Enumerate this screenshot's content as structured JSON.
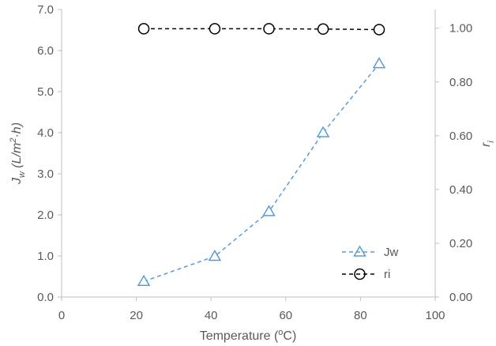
{
  "chart_data": {
    "type": "line",
    "xlabel": "Temperature (",
    "xlabel_sup": "o",
    "xlabel_tail": "C)",
    "ylabel_left": {
      "J": "J",
      "w": "w",
      "open": " (L/m",
      "sq": "2",
      "tail": "·h)"
    },
    "ylabel_right": {
      "r": "r",
      "i": "i"
    },
    "x_ticks": [
      "0",
      "20",
      "40",
      "60",
      "80",
      "100"
    ],
    "y_left_ticks": [
      "0.0",
      "1.0",
      "2.0",
      "3.0",
      "4.0",
      "5.0",
      "6.0",
      "7.0"
    ],
    "y_right_ticks": [
      "0.00",
      "0.20",
      "0.40",
      "0.60",
      "0.80",
      "1.00"
    ],
    "xlim": [
      0,
      100
    ],
    "ylim_left": [
      0,
      7
    ],
    "ylim_right": [
      0,
      1.0698
    ],
    "grid": false,
    "legend_position": "bottom-right",
    "series": [
      {
        "name": "Jw",
        "axis": "left",
        "marker": "triangle",
        "color": "#5B9BD5",
        "points": [
          [
            22,
            0.38
          ],
          [
            41,
            0.99
          ],
          [
            55.5,
            2.08
          ],
          [
            70,
            4.0
          ],
          [
            85,
            5.68
          ]
        ]
      },
      {
        "name": "ri",
        "axis": "right",
        "marker": "circle",
        "color": "#000000",
        "points": [
          [
            22,
            0.998
          ],
          [
            41,
            0.998
          ],
          [
            55.5,
            0.998
          ],
          [
            70,
            0.997
          ],
          [
            85,
            0.995
          ]
        ]
      }
    ]
  }
}
